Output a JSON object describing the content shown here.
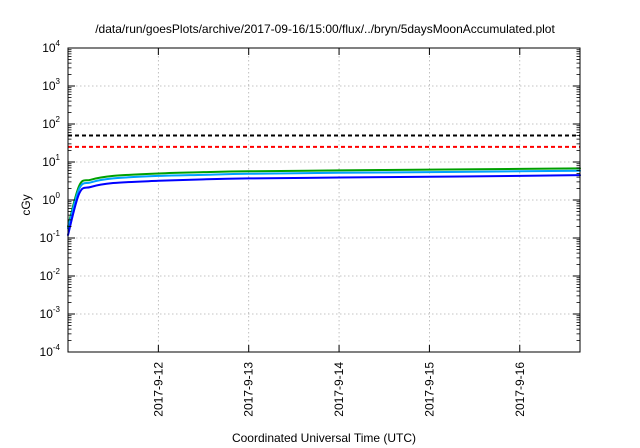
{
  "chart_data": {
    "type": "line",
    "title": "/data/run/goesPlots/archive/2017-09-16/15:00/flux/../bryn/5daysMoonAccumulated.plot",
    "xlabel": "Coordinated Universal Time (UTC)",
    "ylabel": "cGy",
    "x_unit": "days",
    "xlim": [
      "2017-09-11 00:00",
      "2017-09-16 16:00"
    ],
    "x_ticks": [
      "2017-9-12",
      "2017-9-13",
      "2017-9-14",
      "2017-9-15",
      "2017-9-16"
    ],
    "y_scale": "log",
    "ylim": [
      0.0001,
      10000
    ],
    "y_ticks": [
      {
        "base": "10",
        "exp": "-4",
        "value": 0.0001
      },
      {
        "base": "10",
        "exp": "-3",
        "value": 0.001
      },
      {
        "base": "10",
        "exp": "-2",
        "value": 0.01
      },
      {
        "base": "10",
        "exp": "-1",
        "value": 0.1
      },
      {
        "base": "10",
        "exp": "0",
        "value": 1
      },
      {
        "base": "10",
        "exp": "1",
        "value": 10
      },
      {
        "base": "10",
        "exp": "2",
        "value": 100
      },
      {
        "base": "10",
        "exp": "3",
        "value": 1000
      },
      {
        "base": "10",
        "exp": "4",
        "value": 10000
      }
    ],
    "grid": true,
    "thresholds": [
      {
        "value": 50,
        "color": "#000000",
        "style": "dashed"
      },
      {
        "value": 25,
        "color": "#ff0000",
        "style": "dashed"
      }
    ],
    "series": [
      {
        "color": "#00a000",
        "x": [
          "2017-09-11 00:00",
          "2017-09-11 03:00",
          "2017-09-11 06:00",
          "2017-09-11 12:00",
          "2017-09-12 00:00",
          "2017-09-12 12:00",
          "2017-09-13 00:00",
          "2017-09-14 00:00",
          "2017-09-15 00:00",
          "2017-09-16 00:00",
          "2017-09-16 16:00"
        ],
        "values": [
          0.2,
          2.4,
          3.4,
          4.3,
          5.0,
          5.4,
          5.7,
          6.0,
          6.3,
          6.6,
          6.8
        ]
      },
      {
        "color": "#00a0ff",
        "x": [
          "2017-09-11 00:00",
          "2017-09-11 03:00",
          "2017-09-11 06:00",
          "2017-09-11 12:00",
          "2017-09-12 00:00",
          "2017-09-12 12:00",
          "2017-09-13 00:00",
          "2017-09-14 00:00",
          "2017-09-15 00:00",
          "2017-09-16 00:00",
          "2017-09-16 16:00"
        ],
        "values": [
          0.18,
          2.0,
          2.9,
          3.7,
          4.3,
          4.6,
          4.9,
          5.2,
          5.4,
          5.7,
          5.9
        ]
      },
      {
        "color": "#0000ff",
        "x": [
          "2017-09-11 00:00",
          "2017-09-11 03:00",
          "2017-09-11 06:00",
          "2017-09-11 12:00",
          "2017-09-12 00:00",
          "2017-09-12 12:00",
          "2017-09-13 00:00",
          "2017-09-14 00:00",
          "2017-09-15 00:00",
          "2017-09-16 00:00",
          "2017-09-16 16:00"
        ],
        "values": [
          0.12,
          1.5,
          2.2,
          2.8,
          3.2,
          3.5,
          3.7,
          3.9,
          4.1,
          4.3,
          4.5
        ]
      }
    ]
  }
}
